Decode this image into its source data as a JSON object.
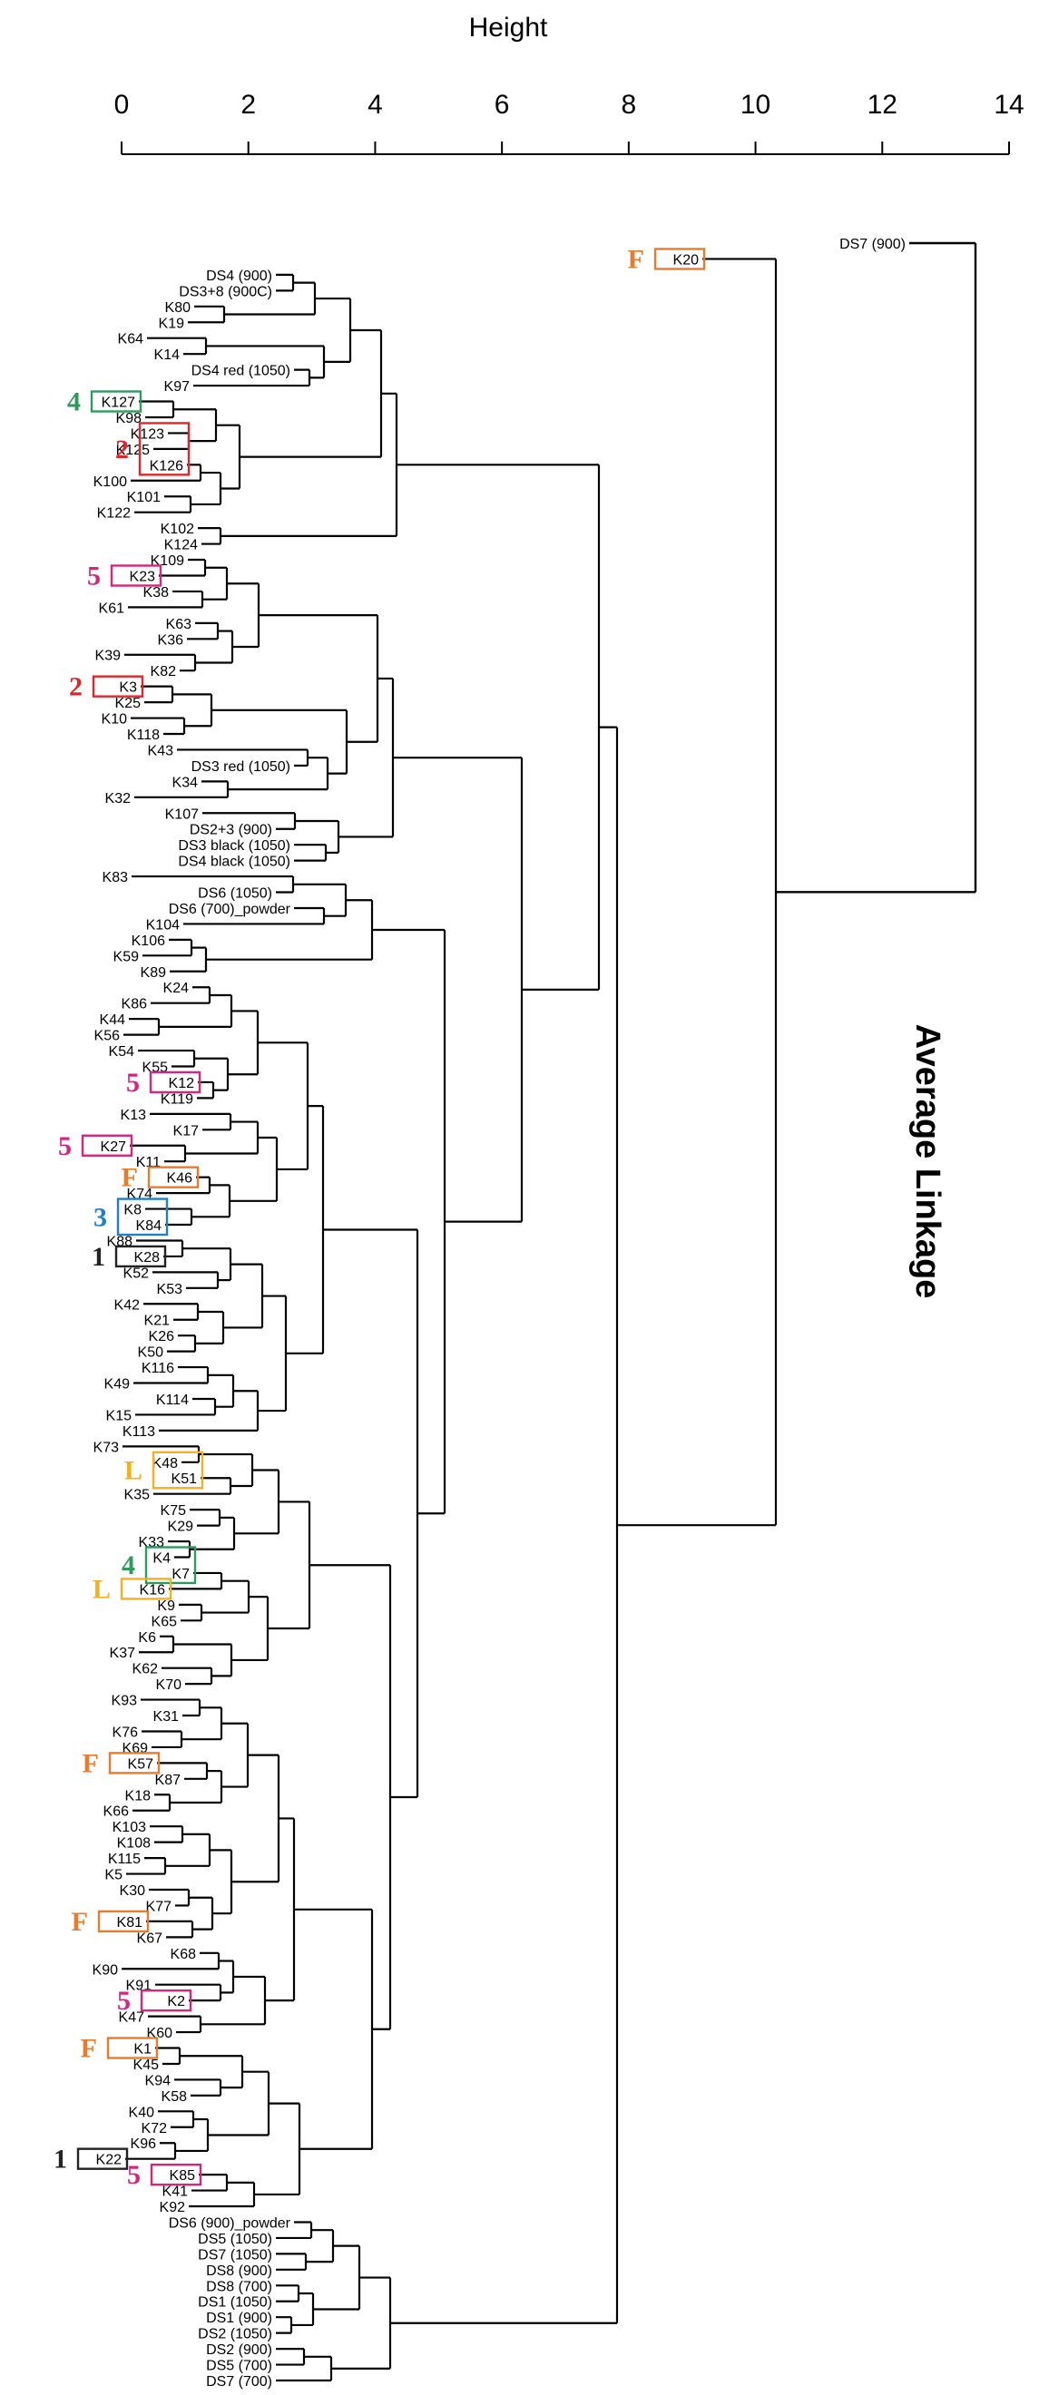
{
  "axis": {
    "title": "Height",
    "ticks": [
      "0",
      "2",
      "4",
      "6",
      "8",
      "10",
      "12",
      "14"
    ]
  },
  "method_title": "Average Linkage",
  "colors": {
    "red": "#e0262b",
    "green": "#2e9b5e",
    "magenta": "#d6257d",
    "orange": "#e87c2c",
    "blue": "#1f7fc8",
    "yellow": "#f3b21d",
    "black": "#222222"
  },
  "leaves": [
    "DS7 (900)",
    "K20",
    "DS4 (900)",
    "DS3+8 (900C)",
    "K80",
    "K19",
    "K64",
    "K14",
    "DS4 red (1050)",
    "K97",
    "K127",
    "K98",
    "K123",
    "K125",
    "K126",
    "K100",
    "K101",
    "K122",
    "K102",
    "K124",
    "K109",
    "K23",
    "K38",
    "K61",
    "K63",
    "K36",
    "K39",
    "K82",
    "K3",
    "K25",
    "K10",
    "K118",
    "K43",
    "DS3 red (1050)",
    "K34",
    "K32",
    "K107",
    "DS2+3 (900)",
    "DS3 black (1050)",
    "DS4 black (1050)",
    "K83",
    "DS6 (1050)",
    "DS6 (700)_powder",
    "K104",
    "K106",
    "K59",
    "K89",
    "K24",
    "K86",
    "K44",
    "K56",
    "K54",
    "K55",
    "K12",
    "K119",
    "K13",
    "K17",
    "K27",
    "K11",
    "K46",
    "K74",
    "K8",
    "K84",
    "K88",
    "K28",
    "K52",
    "K53",
    "K42",
    "K21",
    "K26",
    "K50",
    "K116",
    "K49",
    "K114",
    "K15",
    "K113",
    "K73",
    "K48",
    "K51",
    "K35",
    "K75",
    "K29",
    "K33",
    "K4",
    "K7",
    "K16",
    "K9",
    "K65",
    "K6",
    "K37",
    "K62",
    "K70",
    "K93",
    "K31",
    "K76",
    "K69",
    "K57",
    "K87",
    "K18",
    "K66",
    "K103",
    "K108",
    "K115",
    "K5",
    "K30",
    "K77",
    "K81",
    "K67",
    "K68",
    "K90",
    "K91",
    "K2",
    "K47",
    "K60",
    "K1",
    "K45",
    "K94",
    "K58",
    "K40",
    "K72",
    "K96",
    "K22",
    "K85",
    "K41",
    "K92",
    "DS6 (900)_powder",
    "DS5 (1050)",
    "DS7 (1050)",
    "DS8 (900)",
    "DS8 (700)",
    "DS1 (1050)",
    "DS1 (900)",
    "DS2 (1050)",
    "DS2 (900)",
    "DS5 (700)",
    "DS7 (700)"
  ],
  "annotations": [
    {
      "label": "F",
      "leaf": "K20",
      "color": "orange"
    },
    {
      "label": "4",
      "leaf": "K127",
      "color": "green"
    },
    {
      "label": "2",
      "leaf": "K125",
      "color": "red",
      "group": [
        "K123",
        "K125",
        "K126"
      ]
    },
    {
      "label": "5",
      "leaf": "K23",
      "color": "magenta"
    },
    {
      "label": "2",
      "leaf": "K3",
      "color": "red"
    },
    {
      "label": "5",
      "leaf": "K12",
      "color": "magenta"
    },
    {
      "label": "5",
      "leaf": "K27",
      "color": "magenta"
    },
    {
      "label": "F",
      "leaf": "K46",
      "color": "orange"
    },
    {
      "label": "3",
      "leaf": "K8",
      "color": "blue",
      "group": [
        "K8",
        "K84"
      ]
    },
    {
      "label": "1",
      "leaf": "K28",
      "color": "black"
    },
    {
      "label": "L",
      "leaf": "K48",
      "color": "yellow",
      "group": [
        "K48",
        "K51"
      ]
    },
    {
      "label": "4",
      "leaf": "K4",
      "color": "green",
      "group": [
        "K4",
        "K7"
      ]
    },
    {
      "label": "L",
      "leaf": "K16",
      "color": "yellow"
    },
    {
      "label": "F",
      "leaf": "K57",
      "color": "orange"
    },
    {
      "label": "F",
      "leaf": "K81",
      "color": "orange"
    },
    {
      "label": "5",
      "leaf": "K2",
      "color": "magenta"
    },
    {
      "label": "F",
      "leaf": "K1",
      "color": "orange"
    },
    {
      "label": "1",
      "leaf": "K22",
      "color": "black"
    },
    {
      "label": "5",
      "leaf": "K85",
      "color": "magenta"
    }
  ]
}
